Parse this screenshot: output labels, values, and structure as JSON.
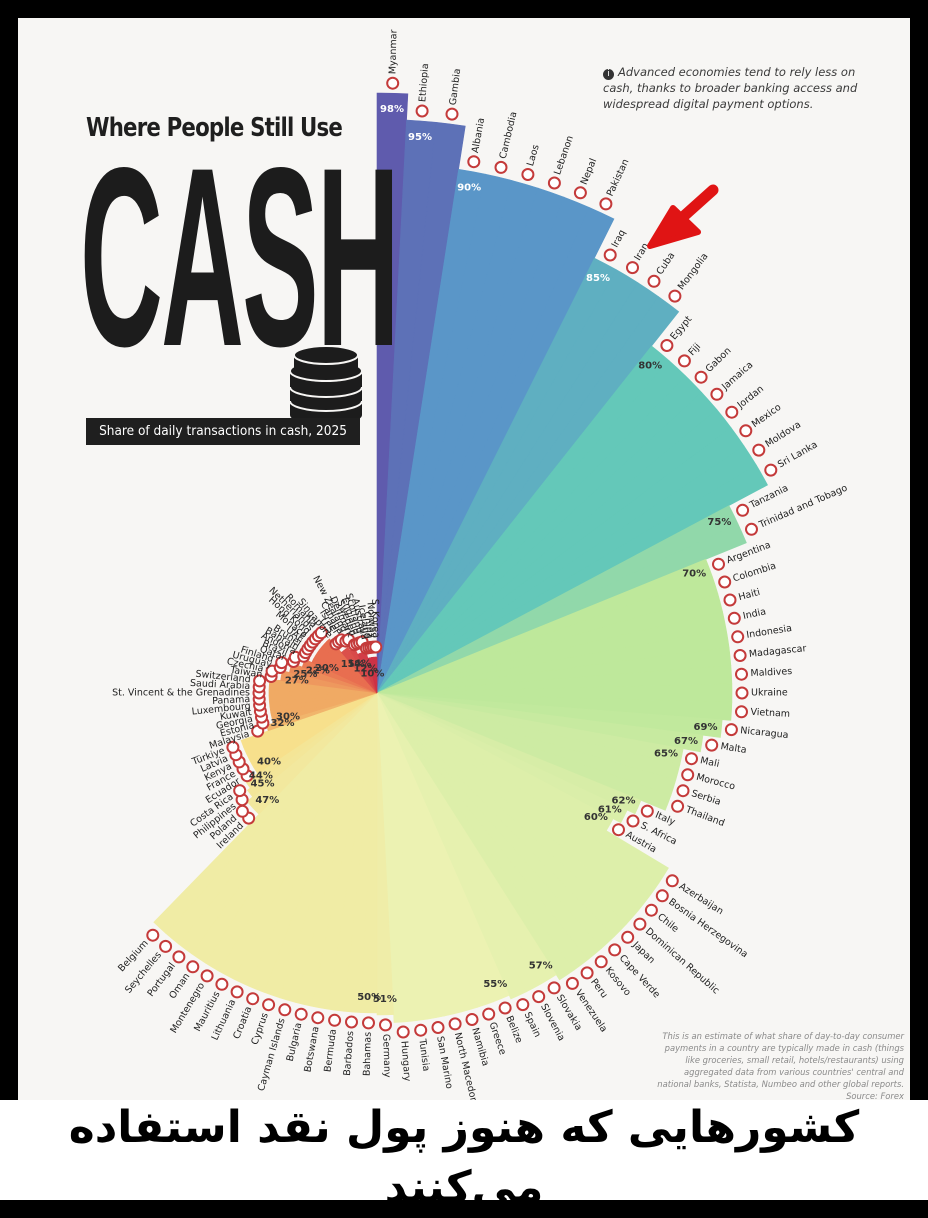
{
  "header": {
    "title_top": "Where People Still Use",
    "title_main": "CASH",
    "subtitle": "Share of daily transactions in cash, 2025"
  },
  "note": "Advanced economies tend to rely less on cash, thanks to broader banking access and widespread digital payment options.",
  "footnote": "This is an estimate of what share of day-to-day consumer payments in a country are typically made in cash (things like groceries, small retail, hotels/restaurants) using aggregated data from various countries' central and national banks, Statista, Numbeo and other global reports. Source: Forex",
  "caption_fa": "کشورهایی که هنوز پول نقد استفاده می‌کنند",
  "colors": {
    "background": "#f7f6f4",
    "arrow": "#e01414",
    "caption_band": "#ffffff"
  },
  "chart_data": {
    "type": "radial-bar",
    "title": "Where People Still Use CASH",
    "subtitle": "Share of daily transactions in cash, 2025",
    "unit": "%",
    "value_labels": [
      "98%",
      "95%",
      "90%",
      "85%",
      "80%",
      "75%",
      "70%",
      "69%",
      "67%",
      "65%",
      "62%",
      "61%",
      "60%",
      "57%",
      "55%",
      "51%",
      "50%",
      "47%",
      "45%",
      "44%",
      "40%",
      "32%",
      "30%",
      "27%",
      "25%",
      "22%",
      "20%",
      "15%",
      "14%",
      "12%",
      "10%"
    ],
    "countries": [
      {
        "name": "Myanmar",
        "value": 98
      },
      {
        "name": "Ethiopia",
        "value": 95
      },
      {
        "name": "Gambia",
        "value": 95
      },
      {
        "name": "Albania",
        "value": 90
      },
      {
        "name": "Cambodia",
        "value": 90
      },
      {
        "name": "Laos",
        "value": 90
      },
      {
        "name": "Lebanon",
        "value": 90
      },
      {
        "name": "Nepal",
        "value": 90
      },
      {
        "name": "Pakistan",
        "value": 90
      },
      {
        "name": "Iraq",
        "value": 85
      },
      {
        "name": "Iran",
        "value": 85
      },
      {
        "name": "Cuba",
        "value": 85
      },
      {
        "name": "Mongolia",
        "value": 85
      },
      {
        "name": "Egypt",
        "value": 80
      },
      {
        "name": "Fiji",
        "value": 80
      },
      {
        "name": "Gabon",
        "value": 80
      },
      {
        "name": "Jamaica",
        "value": 80
      },
      {
        "name": "Jordan",
        "value": 80
      },
      {
        "name": "Mexico",
        "value": 80
      },
      {
        "name": "Moldova",
        "value": 80
      },
      {
        "name": "Sri Lanka",
        "value": 80
      },
      {
        "name": "Tanzania",
        "value": 75
      },
      {
        "name": "Trinidad and Tobago",
        "value": 75
      },
      {
        "name": "Argentina",
        "value": 70
      },
      {
        "name": "Colombia",
        "value": 70
      },
      {
        "name": "Haiti",
        "value": 70
      },
      {
        "name": "India",
        "value": 70
      },
      {
        "name": "Indonesia",
        "value": 70
      },
      {
        "name": "Madagascar",
        "value": 70
      },
      {
        "name": "Maldives",
        "value": 70
      },
      {
        "name": "Ukraine",
        "value": 70
      },
      {
        "name": "Vietnam",
        "value": 70
      },
      {
        "name": "Nicaragua",
        "value": 69
      },
      {
        "name": "Malta",
        "value": 67
      },
      {
        "name": "Mali",
        "value": 65
      },
      {
        "name": "Morocco",
        "value": 65
      },
      {
        "name": "Serbia",
        "value": 65
      },
      {
        "name": "Thailand",
        "value": 65
      },
      {
        "name": "Italy",
        "value": 62
      },
      {
        "name": "S. Africa",
        "value": 61
      },
      {
        "name": "Austria",
        "value": 60
      },
      {
        "name": "Azerbaijan",
        "value": 60
      },
      {
        "name": "Bosnia Herzegovina",
        "value": 60
      },
      {
        "name": "Chile",
        "value": 60
      },
      {
        "name": "Dominican Republic",
        "value": 60
      },
      {
        "name": "Japan",
        "value": 60
      },
      {
        "name": "Cape Verde",
        "value": 60
      },
      {
        "name": "Kosovo",
        "value": 60
      },
      {
        "name": "Peru",
        "value": 60
      },
      {
        "name": "Venezuela",
        "value": 60
      },
      {
        "name": "Slovakia",
        "value": 57
      },
      {
        "name": "Slovenia",
        "value": 57
      },
      {
        "name": "Spain",
        "value": 57
      },
      {
        "name": "Belize",
        "value": 55
      },
      {
        "name": "Greece",
        "value": 55
      },
      {
        "name": "Namibia",
        "value": 55
      },
      {
        "name": "North Macedonia",
        "value": 55
      },
      {
        "name": "San Marino",
        "value": 55
      },
      {
        "name": "Tunisia",
        "value": 55
      },
      {
        "name": "Hungary",
        "value": 55
      },
      {
        "name": "Germany",
        "value": 51
      },
      {
        "name": "Bahamas",
        "value": 50
      },
      {
        "name": "Barbados",
        "value": 50
      },
      {
        "name": "Bermuda",
        "value": 50
      },
      {
        "name": "Botswana",
        "value": 50
      },
      {
        "name": "Bulgaria",
        "value": 50
      },
      {
        "name": "Cayman Islands",
        "value": 50
      },
      {
        "name": "Cyprus",
        "value": 50
      },
      {
        "name": "Croatia",
        "value": 50
      },
      {
        "name": "Lithuania",
        "value": 50
      },
      {
        "name": "Mauritius",
        "value": 50
      },
      {
        "name": "Montenegro",
        "value": 50
      },
      {
        "name": "Oman",
        "value": 50
      },
      {
        "name": "Portugal",
        "value": 50
      },
      {
        "name": "Seychelles",
        "value": 50
      },
      {
        "name": "Belgium",
        "value": 50
      },
      {
        "name": "Ireland",
        "value": 47
      },
      {
        "name": "Poland",
        "value": 47
      },
      {
        "name": "Philippines",
        "value": 45
      },
      {
        "name": "Costa Rica",
        "value": 44
      },
      {
        "name": "Ecuador",
        "value": 40
      },
      {
        "name": "France",
        "value": 40
      },
      {
        "name": "Kenya",
        "value": 40
      },
      {
        "name": "Latvia",
        "value": 40
      },
      {
        "name": "Türkiye",
        "value": 40
      },
      {
        "name": "Malaysia",
        "value": 32
      },
      {
        "name": "Estonia",
        "value": 30
      },
      {
        "name": "Georgia",
        "value": 30
      },
      {
        "name": "Kuwait",
        "value": 30
      },
      {
        "name": "Luxembourg",
        "value": 30
      },
      {
        "name": "Panama",
        "value": 30
      },
      {
        "name": "St. Vincent & the Grenadines",
        "value": 30
      },
      {
        "name": "Saudi Arabia",
        "value": 30
      },
      {
        "name": "Switzerland",
        "value": 30
      },
      {
        "name": "Taiwan",
        "value": 27
      },
      {
        "name": "Czechia",
        "value": 27
      },
      {
        "name": "Uruguay",
        "value": 25
      },
      {
        "name": "Finland",
        "value": 25
      },
      {
        "name": "Qatar",
        "value": 22
      },
      {
        "name": "Brazil",
        "value": 22
      },
      {
        "name": "Andorra",
        "value": 20
      },
      {
        "name": "Bahrain",
        "value": 20
      },
      {
        "name": "Brunei",
        "value": 20
      },
      {
        "name": "UAE",
        "value": 20
      },
      {
        "name": "Monaco",
        "value": 20
      },
      {
        "name": "Hong Kong",
        "value": 20
      },
      {
        "name": "Netherlands",
        "value": 20
      },
      {
        "name": "Romania",
        "value": 20
      },
      {
        "name": "Singapore",
        "value": 15
      },
      {
        "name": "U.S.",
        "value": 15
      },
      {
        "name": "Israel",
        "value": 15
      },
      {
        "name": "Canada",
        "value": 14
      },
      {
        "name": "New Zealand",
        "value": 14
      },
      {
        "name": "Denmark",
        "value": 12
      },
      {
        "name": "Sweden",
        "value": 12
      },
      {
        "name": "England",
        "value": 12
      },
      {
        "name": "Scotland",
        "value": 12
      },
      {
        "name": "Australia",
        "value": 10
      },
      {
        "name": "Iceland",
        "value": 10
      },
      {
        "name": "China",
        "value": 10
      },
      {
        "name": "Norway",
        "value": 10
      },
      {
        "name": "S. Korea",
        "value": 10
      }
    ],
    "highlighted_country": "Iran"
  }
}
